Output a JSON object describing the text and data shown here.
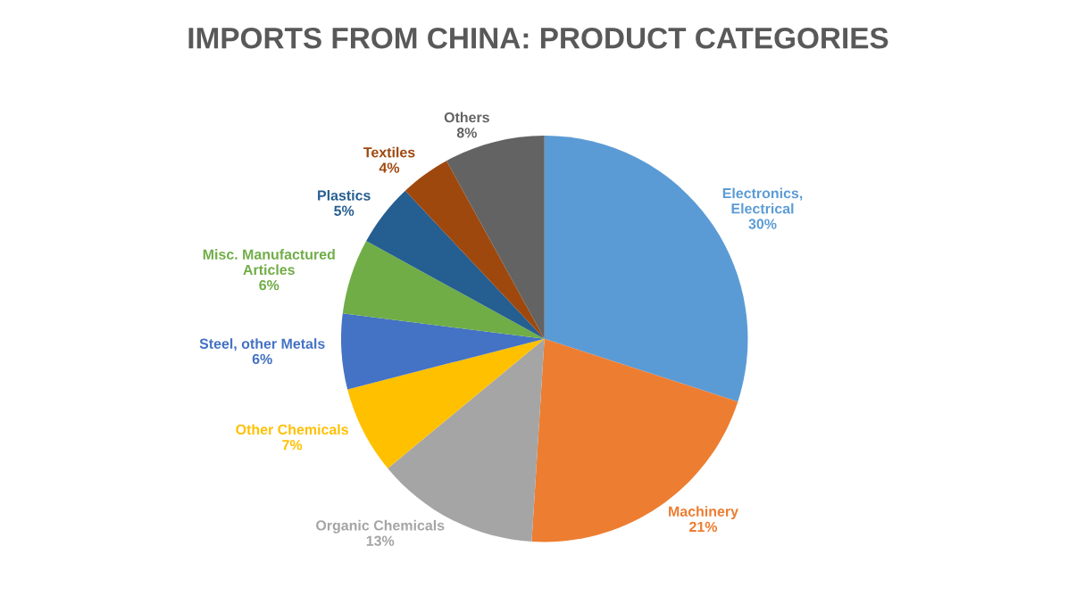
{
  "chart_data": {
    "type": "pie",
    "title": "IMPORTS FROM CHINA: PRODUCT CATEGORIES",
    "categories": [
      "Electronics,\nElectrical",
      "Machinery",
      "Organic Chemicals",
      "Other Chemicals",
      "Steel, other Metals",
      "Misc. Manufactured\nArticles",
      "Plastics",
      "Textiles",
      "Others"
    ],
    "values": [
      30,
      21,
      13,
      7,
      6,
      6,
      5,
      4,
      8
    ],
    "value_labels": [
      "30%",
      "21%",
      "13%",
      "7%",
      "6%",
      "6%",
      "5%",
      "4%",
      "8%"
    ],
    "colors": [
      "#5b9bd5",
      "#ed7d31",
      "#a5a5a5",
      "#ffc000",
      "#4472c4",
      "#70ad47",
      "#255e91",
      "#9e480e",
      "#636363"
    ],
    "legend": false
  }
}
